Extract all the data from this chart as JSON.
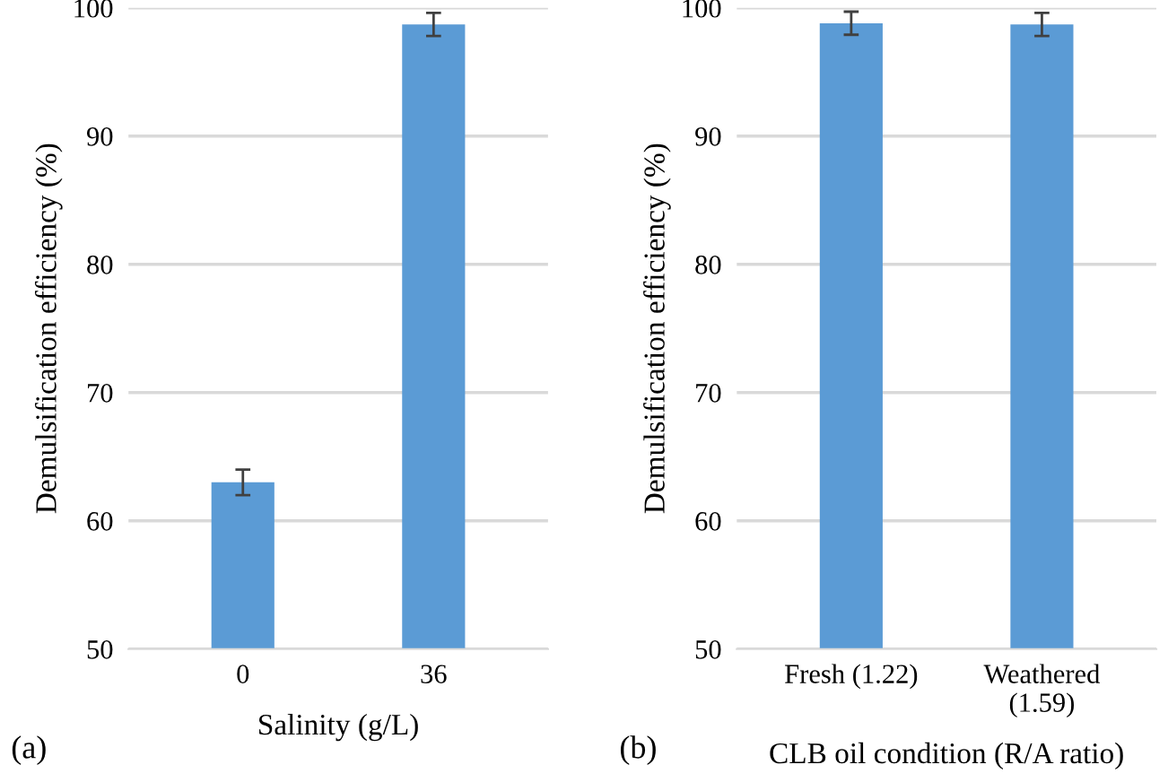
{
  "chart_data": [
    {
      "type": "bar",
      "xlabel": "Salinity (g/L)",
      "ylabel": "Demulsification efficiency (%)",
      "categories": [
        "0",
        "36"
      ],
      "values": [
        63,
        98.7
      ],
      "errors": [
        1,
        0.9
      ],
      "color": "#5b9bd5",
      "ylim": [
        50,
        100
      ],
      "yticks": [
        50,
        60,
        70,
        80,
        90,
        100
      ],
      "grid": "y",
      "annotations": [
        "(a)"
      ]
    },
    {
      "type": "bar",
      "xlabel": "CLB oil condition (R/A ratio)",
      "ylabel": "Demulsification efficiency (%)",
      "categories": [
        "Fresh (1.22)",
        "Weathered\n(1.59)"
      ],
      "values": [
        98.8,
        98.7
      ],
      "errors": [
        0.9,
        0.9
      ],
      "color": "#5b9bd5",
      "ylim": [
        50,
        100
      ],
      "yticks": [
        50,
        60,
        70,
        80,
        90,
        100
      ],
      "grid": "y",
      "annotations": [
        "(b)"
      ]
    }
  ]
}
